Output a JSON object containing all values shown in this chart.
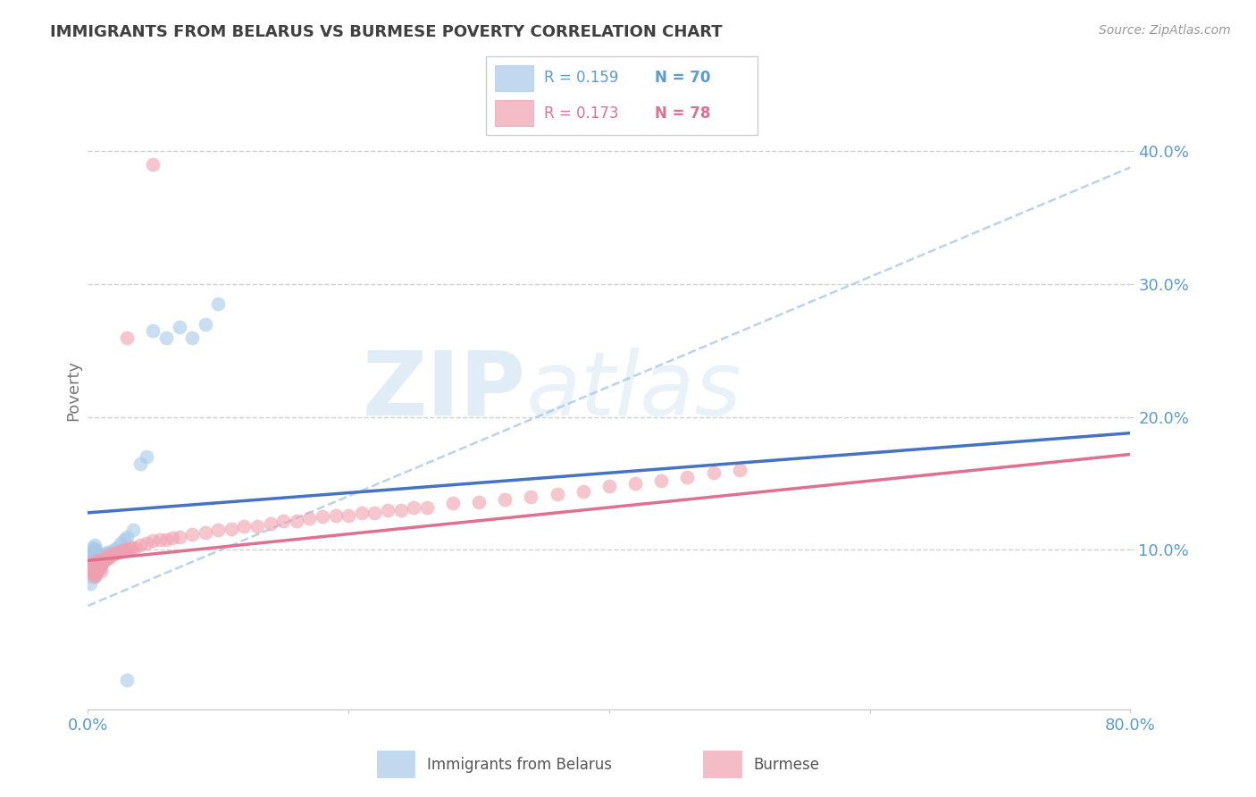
{
  "title": "IMMIGRANTS FROM BELARUS VS BURMESE POVERTY CORRELATION CHART",
  "source": "Source: ZipAtlas.com",
  "ylabel": "Poverty",
  "xlim": [
    0.0,
    0.8
  ],
  "ylim": [
    -0.02,
    0.46
  ],
  "yticks": [
    0.1,
    0.2,
    0.3,
    0.4
  ],
  "ytick_labels": [
    "10.0%",
    "20.0%",
    "30.0%",
    "40.0%"
  ],
  "background_color": "#ffffff",
  "grid_color": "#d0d0d0",
  "blue_color": "#a8c8e8",
  "pink_color": "#f0a0b0",
  "blue_line_color": "#4472c4",
  "pink_line_color": "#e07090",
  "axis_label_color": "#5b9bd5",
  "title_color": "#404040",
  "watermark_zip": "ZIP",
  "watermark_atlas": "atlas",
  "blue_scatter_x": [
    0.001,
    0.002,
    0.002,
    0.002,
    0.003,
    0.003,
    0.003,
    0.003,
    0.004,
    0.004,
    0.004,
    0.004,
    0.004,
    0.004,
    0.005,
    0.005,
    0.005,
    0.005,
    0.005,
    0.005,
    0.005,
    0.006,
    0.006,
    0.006,
    0.006,
    0.006,
    0.006,
    0.006,
    0.007,
    0.007,
    0.007,
    0.007,
    0.007,
    0.008,
    0.008,
    0.008,
    0.009,
    0.009,
    0.009,
    0.01,
    0.01,
    0.01,
    0.011,
    0.011,
    0.012,
    0.012,
    0.013,
    0.013,
    0.014,
    0.014,
    0.015,
    0.015,
    0.016,
    0.017,
    0.018,
    0.02,
    0.022,
    0.025,
    0.028,
    0.03,
    0.035,
    0.04,
    0.045,
    0.05,
    0.06,
    0.07,
    0.08,
    0.09,
    0.1,
    0.03
  ],
  "blue_scatter_y": [
    0.088,
    0.075,
    0.092,
    0.098,
    0.08,
    0.085,
    0.09,
    0.095,
    0.082,
    0.086,
    0.09,
    0.094,
    0.098,
    0.102,
    0.08,
    0.084,
    0.088,
    0.092,
    0.096,
    0.1,
    0.104,
    0.082,
    0.085,
    0.088,
    0.091,
    0.094,
    0.097,
    0.1,
    0.085,
    0.088,
    0.091,
    0.094,
    0.097,
    0.088,
    0.091,
    0.094,
    0.088,
    0.091,
    0.094,
    0.09,
    0.093,
    0.096,
    0.09,
    0.093,
    0.092,
    0.095,
    0.093,
    0.096,
    0.094,
    0.097,
    0.095,
    0.098,
    0.096,
    0.097,
    0.098,
    0.1,
    0.102,
    0.105,
    0.108,
    0.11,
    0.115,
    0.165,
    0.17,
    0.265,
    0.26,
    0.268,
    0.26,
    0.27,
    0.285,
    0.002
  ],
  "pink_scatter_x": [
    0.001,
    0.002,
    0.003,
    0.004,
    0.004,
    0.005,
    0.005,
    0.005,
    0.006,
    0.006,
    0.006,
    0.007,
    0.007,
    0.007,
    0.008,
    0.008,
    0.009,
    0.009,
    0.01,
    0.01,
    0.01,
    0.011,
    0.012,
    0.013,
    0.014,
    0.015,
    0.016,
    0.017,
    0.018,
    0.02,
    0.022,
    0.024,
    0.026,
    0.028,
    0.03,
    0.032,
    0.034,
    0.036,
    0.04,
    0.045,
    0.05,
    0.055,
    0.06,
    0.065,
    0.07,
    0.08,
    0.09,
    0.1,
    0.11,
    0.12,
    0.13,
    0.14,
    0.15,
    0.16,
    0.17,
    0.18,
    0.19,
    0.2,
    0.21,
    0.22,
    0.23,
    0.24,
    0.25,
    0.26,
    0.28,
    0.3,
    0.32,
    0.34,
    0.36,
    0.38,
    0.4,
    0.42,
    0.44,
    0.46,
    0.48,
    0.5,
    0.03,
    0.05
  ],
  "pink_scatter_y": [
    0.09,
    0.085,
    0.088,
    0.082,
    0.086,
    0.08,
    0.084,
    0.088,
    0.082,
    0.086,
    0.09,
    0.084,
    0.088,
    0.092,
    0.086,
    0.09,
    0.086,
    0.09,
    0.084,
    0.088,
    0.092,
    0.09,
    0.092,
    0.094,
    0.093,
    0.094,
    0.094,
    0.096,
    0.096,
    0.097,
    0.098,
    0.098,
    0.099,
    0.1,
    0.1,
    0.101,
    0.102,
    0.102,
    0.104,
    0.105,
    0.107,
    0.108,
    0.108,
    0.109,
    0.11,
    0.112,
    0.113,
    0.115,
    0.116,
    0.118,
    0.118,
    0.12,
    0.122,
    0.122,
    0.124,
    0.125,
    0.126,
    0.126,
    0.128,
    0.128,
    0.13,
    0.13,
    0.132,
    0.132,
    0.135,
    0.136,
    0.138,
    0.14,
    0.142,
    0.144,
    0.148,
    0.15,
    0.152,
    0.155,
    0.158,
    0.16,
    0.26,
    0.39
  ],
  "blue_trendline_x": [
    0.0,
    0.8
  ],
  "blue_trendline_y": [
    0.128,
    0.188
  ],
  "pink_trendline_x": [
    0.0,
    0.8
  ],
  "pink_trendline_y": [
    0.092,
    0.172
  ],
  "dash_line_x": [
    0.0,
    0.8
  ],
  "dash_line_y": [
    0.058,
    0.388
  ]
}
